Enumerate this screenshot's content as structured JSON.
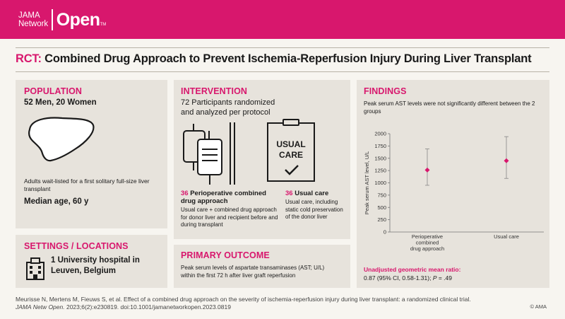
{
  "header": {
    "logo_line1": "JAMA",
    "logo_line2": "Network",
    "logo_big": "Open",
    "logo_tm": "TM"
  },
  "title": {
    "tag": "RCT:",
    "text": " Combined Drug Approach to Prevent Ischemia-Reperfusion Injury During  Liver Transplant"
  },
  "population": {
    "heading": "POPULATION",
    "counts": "52 Men, 20 Women",
    "description": "Adults wait-listed for a first solitary full-size liver transplant",
    "median_age": "Median age, 60 y"
  },
  "settings": {
    "heading": "SETTINGS / LOCATIONS",
    "location_line1": "1 University hospital in",
    "location_line2": "Leuven, Belgium"
  },
  "intervention": {
    "heading": "INTERVENTION",
    "randomized_line1": "72 Participants randomized",
    "randomized_line2": "and analyzed per protocol",
    "usual_care_icon_line1": "USUAL",
    "usual_care_icon_line2": "CARE",
    "arm1_count": "36",
    "arm1_title_line1": " Perioperative combined",
    "arm1_title_line2": "drug approach",
    "arm1_description": "Usual care + combined drug approach for donor liver and recipient before and during transplant",
    "arm2_count": "36",
    "arm2_title": " Usual care",
    "arm2_description": "Usual care, including static cold preservation of the donor liver"
  },
  "primary_outcome": {
    "heading": "PRIMARY OUTCOME",
    "text_line1": "Peak serum levels of aspartate transaminases (AST; U/L)",
    "text_line2": "within the first 72 h after liver graft reperfusion"
  },
  "findings": {
    "heading": "FINDINGS",
    "text": "Peak serum AST levels were not significantly different between the 2 groups",
    "ratio_heading": "Unadjusted geometric mean ratio:",
    "ratio_value": "0.87 (95% CI, 0.58-1.31); ",
    "ratio_p": "P",
    "ratio_p_value": " = .49"
  },
  "chart_data": {
    "type": "scatter",
    "ylabel": "Peak serum AST level, U/L",
    "ylim": [
      0,
      2000
    ],
    "yticks": [
      0,
      250,
      500,
      750,
      1000,
      1250,
      1500,
      1750,
      2000
    ],
    "ytick_labels": [
      "0",
      "250",
      "500",
      "750",
      "1000",
      "1250",
      "1500",
      "1750",
      "2000"
    ],
    "categories": [
      {
        "label_lines": [
          "Perioperative",
          "combined",
          "drug approach"
        ]
      },
      {
        "label_lines": [
          "Usual care"
        ]
      }
    ],
    "series": [
      {
        "values": [
          1260,
          1450
        ],
        "ci_low": [
          950,
          1090
        ],
        "ci_high": [
          1690,
          1940
        ]
      }
    ],
    "marker_color": "#d8176d"
  },
  "footer": {
    "citation_line1": "Meurisse N, Mertens M, Fieuws S, et al. Effect of a combined drug approach on the severity of ischemia-reperfusion injury during liver transplant: a randomized clinical trial.",
    "citation_journal": "JAMA Netw Open.",
    "citation_rest": " 2023;6(2):e230819. doi:10.1001/jamanetworkopen.2023.0819",
    "copyright": "© AMA"
  },
  "colors": {
    "accent": "#d8176d",
    "panel": "#e7e3dc",
    "background": "#f7f5f0"
  }
}
